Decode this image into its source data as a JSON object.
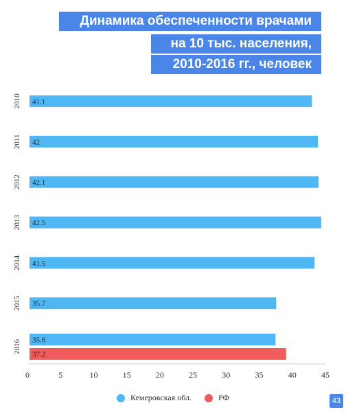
{
  "title_lines": [
    "Динамика обеспеченности врачами",
    "на 10 тыс. населения,",
    "2010-2016 гг., человек"
  ],
  "page_number": "43",
  "chart_data": {
    "type": "bar",
    "orientation": "horizontal",
    "categories": [
      "2010",
      "2011",
      "2012",
      "2013",
      "2014",
      "2015",
      "2016"
    ],
    "series": [
      {
        "name": "Кемеровская обл.",
        "color": "#4fb7f4",
        "values": [
          41.1,
          42,
          42.1,
          42.5,
          41.5,
          35.7,
          35.6
        ]
      },
      {
        "name": "РФ",
        "color": "#f25b5b",
        "values": [
          null,
          null,
          null,
          null,
          null,
          null,
          37.2
        ]
      }
    ],
    "x_ticks": [
      "0",
      "5",
      "10",
      "15",
      "20",
      "25",
      "30",
      "35",
      "40",
      "45"
    ],
    "xlim": [
      0,
      45
    ],
    "grid": false,
    "legend_position": "bottom"
  }
}
